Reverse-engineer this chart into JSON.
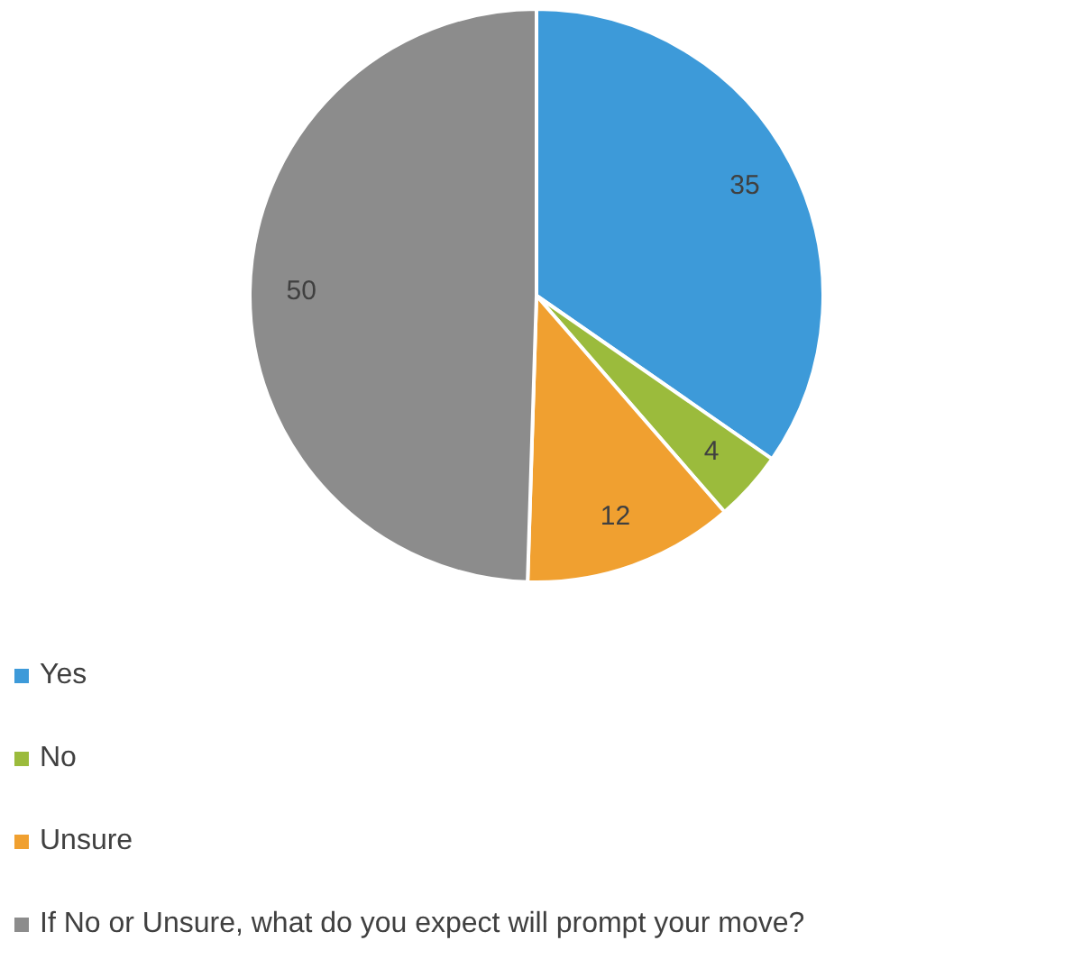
{
  "chart_data": {
    "type": "pie",
    "categories": [
      "Yes",
      "No",
      "Unsure",
      "If No or Unsure, what do you expect will prompt your move?"
    ],
    "values": [
      35,
      4,
      12,
      50
    ],
    "colors": [
      "#3d9ad9",
      "#9bbb3c",
      "#f0a030",
      "#8c8c8c"
    ],
    "data_labels": true,
    "legend": "bottom left"
  }
}
